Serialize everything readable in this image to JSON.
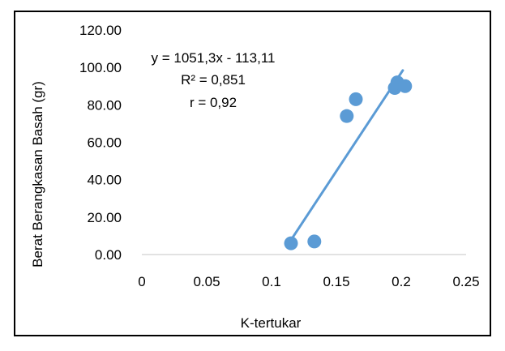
{
  "chart_data": {
    "type": "scatter",
    "xlabel": "K-tertukar",
    "ylabel": "Berat Berangkasan Basah (gr)",
    "xlim": [
      0,
      0.25
    ],
    "ylim": [
      0,
      120
    ],
    "x_ticks": [
      "0",
      "0.05",
      "0.1",
      "0.15",
      "0.2",
      "0.25"
    ],
    "y_ticks": [
      "0.00",
      "20.00",
      "40.00",
      "60.00",
      "80.00",
      "100.00",
      "120.00"
    ],
    "grid": false,
    "points": [
      {
        "x": 0.115,
        "y": 6
      },
      {
        "x": 0.133,
        "y": 7
      },
      {
        "x": 0.158,
        "y": 74
      },
      {
        "x": 0.165,
        "y": 83
      },
      {
        "x": 0.195,
        "y": 89
      },
      {
        "x": 0.197,
        "y": 92
      },
      {
        "x": 0.203,
        "y": 90
      }
    ],
    "trendline": {
      "slope": 1051.3,
      "intercept": -113.11,
      "x_start": 0.1133,
      "x_end": 0.2012
    },
    "annotations": [
      "y = 1051,3x - 113,11",
      "R² = 0,851",
      "r = 0,92"
    ],
    "colors": {
      "marker": "#5b9bd5",
      "trendline": "#5b9bd5",
      "axis": "#d9d9d9",
      "border": "#000000"
    }
  }
}
